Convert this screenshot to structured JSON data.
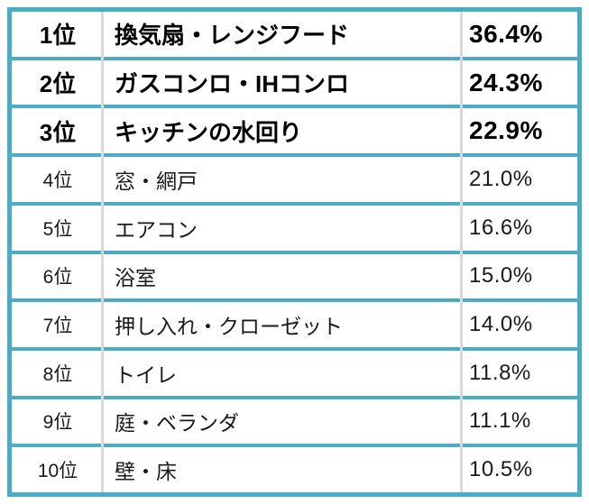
{
  "table": {
    "rows": [
      {
        "rank": "1位",
        "label": "換気扇・レンジフード",
        "value": "36.4%"
      },
      {
        "rank": "2位",
        "label": "ガスコンロ・IHコンロ",
        "value": "24.3%"
      },
      {
        "rank": "3位",
        "label": "キッチンの水回り",
        "value": "22.9%"
      },
      {
        "rank": "4位",
        "label": "窓・網戸",
        "value": "21.0%"
      },
      {
        "rank": "5位",
        "label": "エアコン",
        "value": "16.6%"
      },
      {
        "rank": "6位",
        "label": "浴室",
        "value": "15.0%"
      },
      {
        "rank": "7位",
        "label": "押し入れ・クローゼット",
        "value": "14.0%"
      },
      {
        "rank": "8位",
        "label": "トイレ",
        "value": "11.8%"
      },
      {
        "rank": "9位",
        "label": "庭・ベランダ",
        "value": "11.1%"
      },
      {
        "rank": "10位",
        "label": "壁・床",
        "value": "10.5%"
      }
    ]
  },
  "colors": {
    "border_teal": "#4BACC6",
    "divider_gray": "#D9D9D9",
    "text_bold": "#000000",
    "text_normal": "#1a1a1a"
  },
  "chart_data": {
    "type": "table",
    "columns": [
      "rank",
      "category",
      "percentage"
    ],
    "rows": [
      [
        "1位",
        "換気扇・レンジフード",
        36.4
      ],
      [
        "2位",
        "ガスコンロ・IHコンロ",
        24.3
      ],
      [
        "3位",
        "キッチンの水回り",
        22.9
      ],
      [
        "4位",
        "窓・網戸",
        21.0
      ],
      [
        "5位",
        "エアコン",
        16.6
      ],
      [
        "6位",
        "浴室",
        15.0
      ],
      [
        "7位",
        "押し入れ・クローゼット",
        14.0
      ],
      [
        "8位",
        "トイレ",
        11.8
      ],
      [
        "9位",
        "庭・ベランダ",
        11.1
      ],
      [
        "10位",
        "壁・床",
        10.5
      ]
    ],
    "title": "",
    "notes": "Top 3 rows emphasized in bold"
  }
}
